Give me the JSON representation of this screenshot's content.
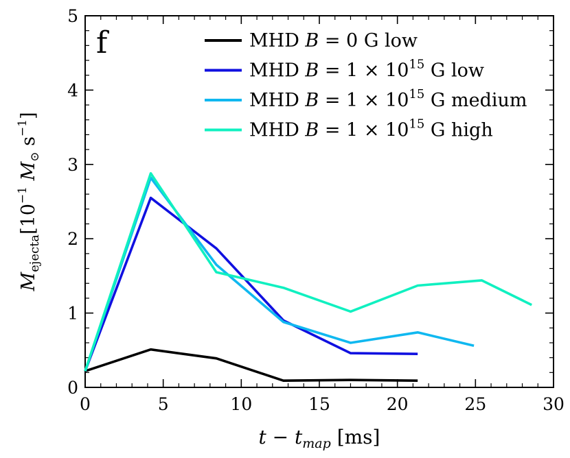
{
  "chart_data": {
    "type": "line",
    "panel_label": "f",
    "xlabel": "t − t",
    "xlabel_sub": "map",
    "xlabel_unit": " [ms]",
    "ylabel_main": "M",
    "ylabel_sub": "ejecta",
    "ylabel_unit_open": "[10",
    "ylabel_unit_exp": "−1",
    "ylabel_unit_mid": " M",
    "ylabel_unit_sun": "⊙",
    "ylabel_unit_s": " s",
    "ylabel_unit_close": "]",
    "xlim": [
      0,
      30
    ],
    "ylim": [
      0,
      5
    ],
    "xticks": [
      0,
      5,
      10,
      15,
      20,
      25,
      30
    ],
    "yticks": [
      0,
      1,
      2,
      3,
      4,
      5
    ],
    "series": [
      {
        "name": "MHD B = 0 G low",
        "legend": {
          "pre": "MHD ",
          "var": "B",
          "eq": " = 0",
          "exp": "",
          "post": " G low"
        },
        "color": "#000000",
        "x": [
          0,
          4.2,
          8.4,
          12.7,
          17,
          21.3
        ],
        "y": [
          0.22,
          0.51,
          0.39,
          0.09,
          0.1,
          0.09
        ]
      },
      {
        "name": "MHD B = 1 × 10^15 G low",
        "legend": {
          "pre": "MHD ",
          "var": "B",
          "eq": " = 1 × 10",
          "exp": "15",
          "post": " G low"
        },
        "color": "#1010e0",
        "x": [
          0,
          4.2,
          8.4,
          12.7,
          17,
          21.3
        ],
        "y": [
          0.22,
          2.55,
          1.87,
          0.9,
          0.46,
          0.45
        ]
      },
      {
        "name": "MHD B = 1 × 10^15 G medium",
        "legend": {
          "pre": "MHD ",
          "var": "B",
          "eq": " = 1 × 10",
          "exp": "15",
          "post": " G medium"
        },
        "color": "#10b8f0",
        "x": [
          0,
          4.2,
          8.4,
          12.7,
          17,
          21.3,
          24.9
        ],
        "y": [
          0.22,
          2.82,
          1.65,
          0.88,
          0.6,
          0.74,
          0.56
        ]
      },
      {
        "name": "MHD B = 1 × 10^15 G high",
        "legend": {
          "pre": "MHD ",
          "var": "B",
          "eq": " = 1 × 10",
          "exp": "15",
          "post": " G high"
        },
        "color": "#10f0c0",
        "x": [
          0,
          4.2,
          8.4,
          12.7,
          17,
          21.3,
          25.4,
          28.6
        ],
        "y": [
          0.22,
          2.88,
          1.55,
          1.34,
          1.02,
          1.37,
          1.44,
          1.11
        ]
      }
    ]
  }
}
